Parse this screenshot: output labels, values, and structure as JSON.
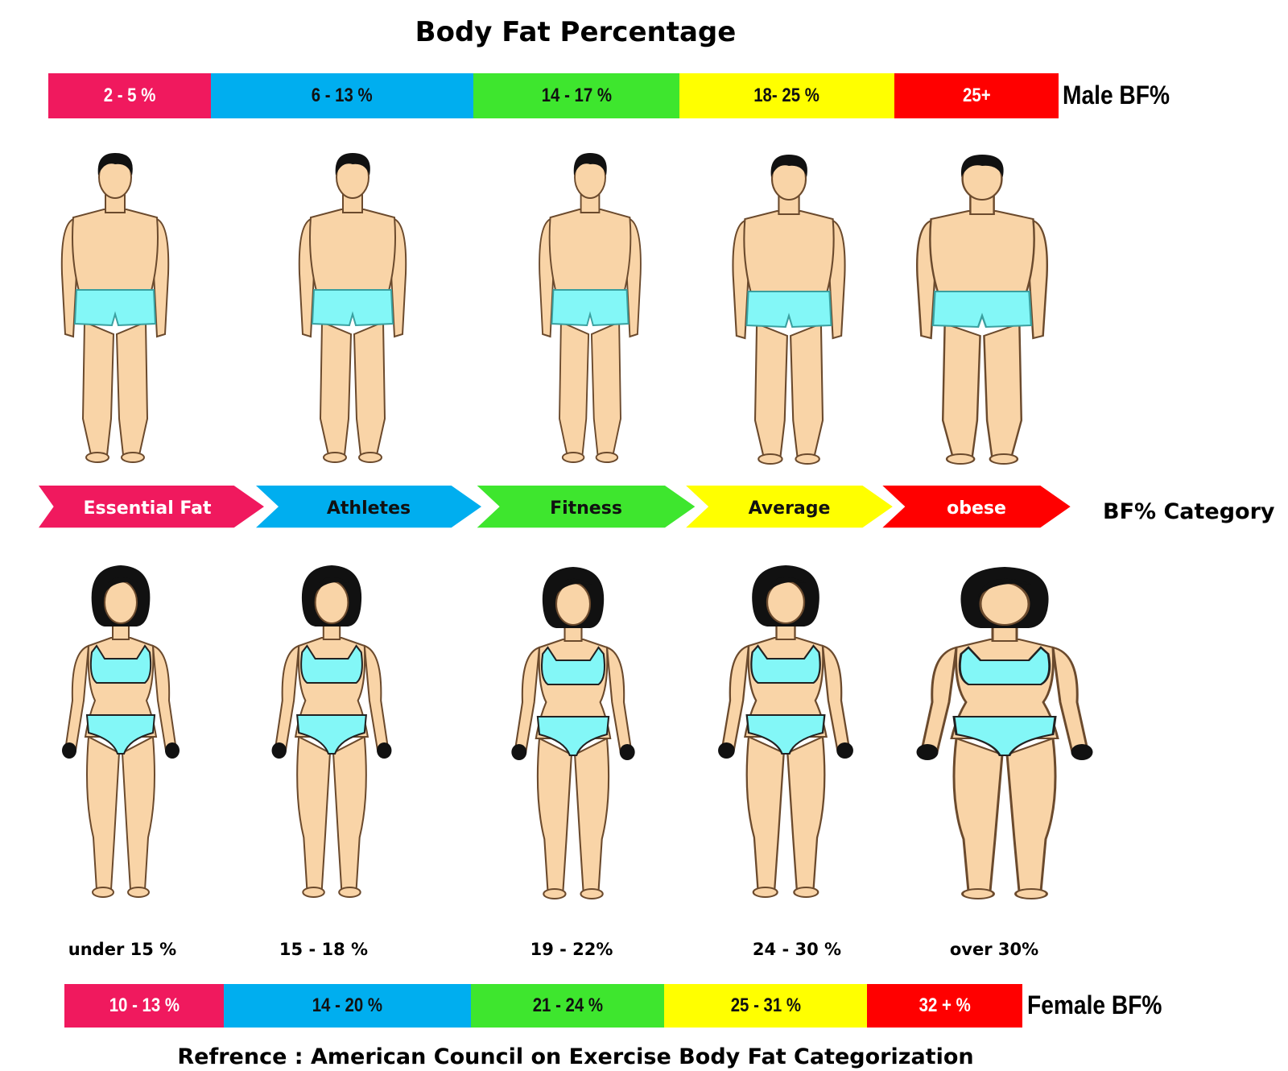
{
  "title": "Body Fat Percentage",
  "male": {
    "label": "Male BF%",
    "ranges": [
      "2 - 5 %",
      "6  - 13 %",
      "14  - 17 %",
      "18- 25 %",
      "25+"
    ]
  },
  "category": {
    "label": "BF% Category",
    "items": [
      "Essential Fat",
      "Athletes",
      "Fitness",
      "Average",
      "obese"
    ]
  },
  "female": {
    "label": "Female BF%",
    "descriptors": [
      "under 15 %",
      "15 - 18 %",
      "19 - 22%",
      "24 - 30 %",
      "over 30%"
    ],
    "ranges": [
      "10  -  13 %",
      "14 - 20 %",
      "21  - 24 %",
      "25  - 31 %",
      "32 + %"
    ]
  },
  "reference": "Refrence : American Council on Exercise Body Fat Categorization",
  "colors": {
    "essential": "#f0195e",
    "athletes": "#00aeef",
    "fitness": "#3ee62e",
    "average": "#ffff00",
    "obese": "#ff0000",
    "skin": "#f9d4a7",
    "swimwear": "#83f7f7",
    "hair": "#111111"
  }
}
